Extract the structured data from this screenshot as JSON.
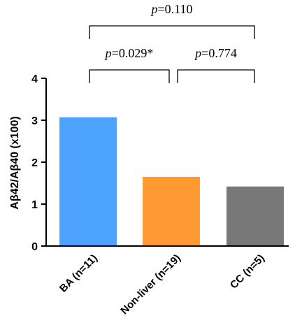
{
  "chart_data": {
    "type": "bar",
    "categories": [
      "BA (n=11)",
      "Non-liver (n=19)",
      "CC (n=5)"
    ],
    "values": [
      3.07,
      1.65,
      1.42
    ],
    "colors": [
      "#4da3ff",
      "#ff9a33",
      "#787878"
    ],
    "ylabel": "Aβ42/Aβ40 (x100)",
    "ylim": [
      0,
      4
    ],
    "yticks": [
      0,
      1,
      2,
      3,
      4
    ],
    "grid": false,
    "annotations": [
      {
        "from": 0,
        "to": 2,
        "p_symbol": "p",
        "p_value": "=0.110"
      },
      {
        "from": 0,
        "to": 1,
        "p_symbol": "p",
        "p_value": "=0.029*"
      },
      {
        "from": 1,
        "to": 2,
        "p_symbol": "p",
        "p_value": "=0.774"
      }
    ]
  }
}
